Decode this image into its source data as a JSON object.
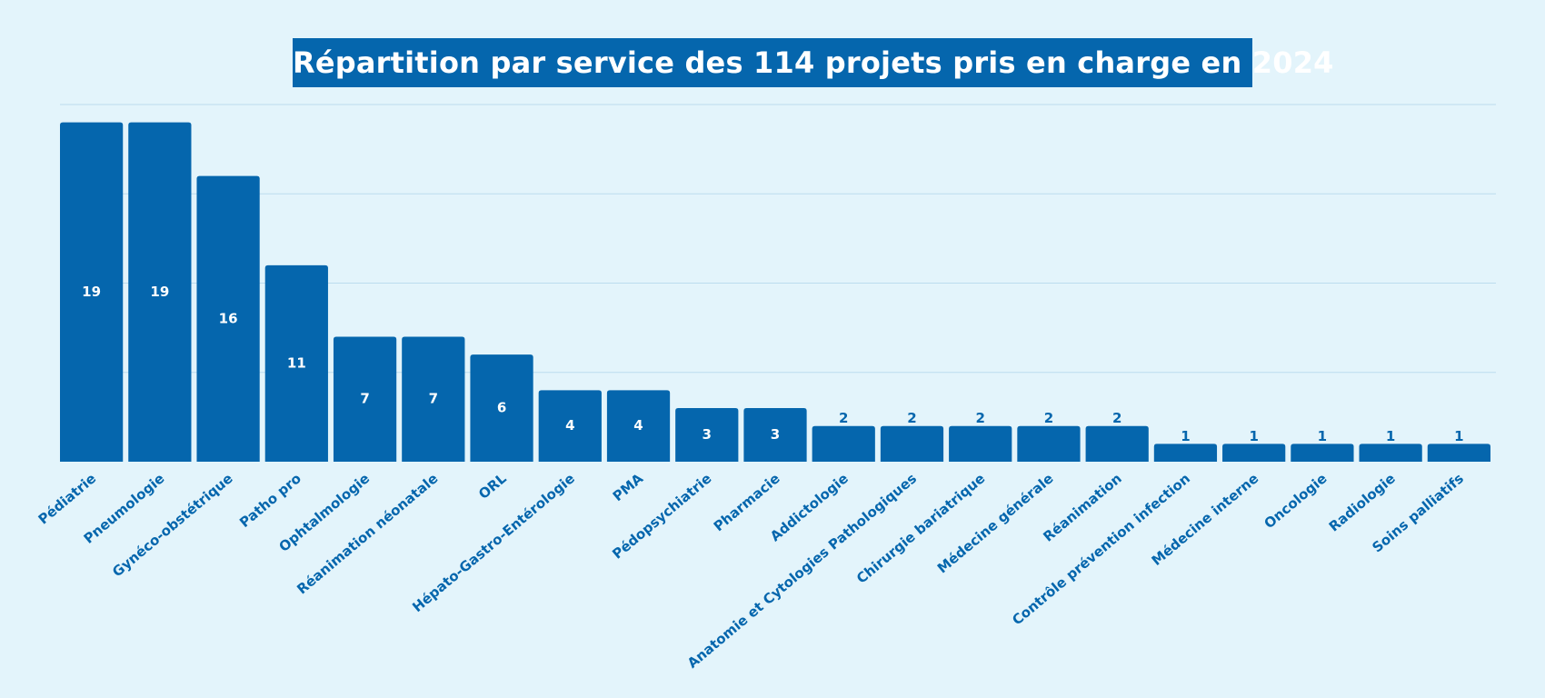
{
  "chart_data": {
    "type": "bar",
    "title": "Répartition par service des 114 projets pris en charge en 2024",
    "xlabel": "",
    "ylabel": "",
    "ylim": [
      0,
      20
    ],
    "grid": true,
    "legend": "none",
    "colors": {
      "bar": "#0566ad",
      "background": "#e3f4fb",
      "title_bg": "#0566ad",
      "title_text": "#ffffff",
      "grid": "#bcdcee",
      "label_inside": "#ffffff",
      "label_outside": "#0566ad"
    },
    "categories": [
      "Pédiatrie",
      "Pneumologie",
      "Gynéco-obstétrique",
      "Patho pro",
      "Ophtalmologie",
      "Réanimation néonatale",
      "ORL",
      "Hépato-Gastro-Entérologie",
      "PMA",
      "Pédopsychiatrie",
      "Pharmacie",
      "Addictologie",
      "Anatomie et Cytologies Pathologiques",
      "Chirurgie bariatrique",
      "Médecine générale",
      "Réanimation",
      "Contrôle prévention infection",
      "Médecine interne",
      "Oncologie",
      "Radiologie",
      "Soins palliatifs"
    ],
    "values": [
      19,
      19,
      16,
      11,
      7,
      7,
      6,
      4,
      4,
      3,
      3,
      2,
      2,
      2,
      2,
      2,
      1,
      1,
      1,
      1,
      1
    ],
    "value_labels": [
      "19",
      "19",
      "16",
      "11",
      "7",
      "7",
      "6",
      "4",
      "4",
      "3",
      "3",
      "2",
      "2",
      "2",
      "2",
      "2",
      "1",
      "1",
      "1",
      "1",
      "1"
    ]
  }
}
